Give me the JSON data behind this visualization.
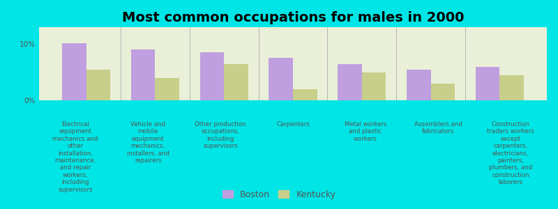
{
  "title": "Most common occupations for males in 2000",
  "categories": [
    "Electrical\nequipment\nmechanics and\nother\ninstallation,\nmaintenance,\nand repair\nworkers,\nincluding\nsupervisors",
    "Vehicle and\nmobile\nequipment\nmechanics,\ninstallers, and\nrepairers",
    "Other production\noccupations,\nincluding\nsupervisors",
    "Carpenters",
    "Metal workers\nand plastic\nworkers",
    "Assemblers and\nfabricators",
    "Construction\ntraders workers\nexcept\ncarpenters,\nelectricians,\npainters,\nplumbers, and\nconstruction\nlaborers"
  ],
  "boston_values": [
    10.2,
    9.0,
    8.5,
    7.5,
    6.5,
    5.5,
    6.0
  ],
  "kentucky_values": [
    5.5,
    4.0,
    6.5,
    2.0,
    5.0,
    3.0,
    4.5
  ],
  "boston_color": "#bf9fdf",
  "kentucky_color": "#c8cf8a",
  "background_color": "#00e5e5",
  "plot_bg_color": "#eaf0d8",
  "ylim": [
    0,
    13
  ],
  "yticks": [
    0,
    10
  ],
  "ytick_labels": [
    "0%",
    "10%"
  ],
  "legend_labels": [
    "Boston",
    "Kentucky"
  ],
  "bar_width": 0.35,
  "title_fontsize": 14
}
